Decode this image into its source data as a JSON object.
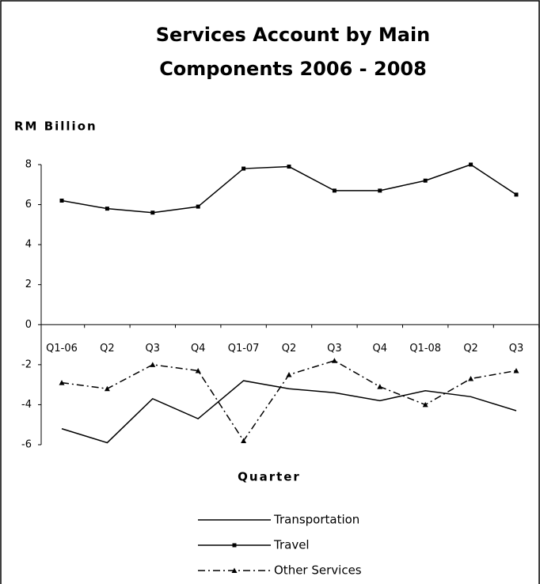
{
  "chart_data": {
    "type": "line",
    "title": [
      "Services Account by Main",
      "Components 2006 - 2008"
    ],
    "y_label": "RM Billion",
    "x_label": "Quarter",
    "categories": [
      "Q1-06",
      "Q2",
      "Q3",
      "Q4",
      "Q1-07",
      "Q2",
      "Q3",
      "Q4",
      "Q1-08",
      "Q2",
      "Q3"
    ],
    "series": [
      {
        "name": "Transportation",
        "color": "#000000",
        "dash": "solid",
        "marker": "none",
        "values": [
          -5.2,
          -5.9,
          -3.7,
          -4.7,
          -2.8,
          -3.2,
          -3.4,
          -3.8,
          -3.3,
          -3.6,
          -4.3
        ]
      },
      {
        "name": "Travel",
        "color": "#000000",
        "dash": "solid",
        "marker": "square",
        "values": [
          6.2,
          5.8,
          5.6,
          5.9,
          7.8,
          7.9,
          6.7,
          6.7,
          7.2,
          8.0,
          6.5
        ]
      },
      {
        "name": "Other Services",
        "color": "#000000",
        "dash": "dashdot",
        "marker": "triangle",
        "values": [
          -2.9,
          -3.2,
          -2.0,
          -2.3,
          -5.8,
          -2.5,
          -1.8,
          -3.1,
          -4.0,
          -2.7,
          -2.3
        ]
      }
    ],
    "ylim": [
      -6,
      8
    ],
    "yticks": [
      -6,
      -4,
      -2,
      0,
      2,
      4,
      6,
      8
    ],
    "grid": false
  }
}
